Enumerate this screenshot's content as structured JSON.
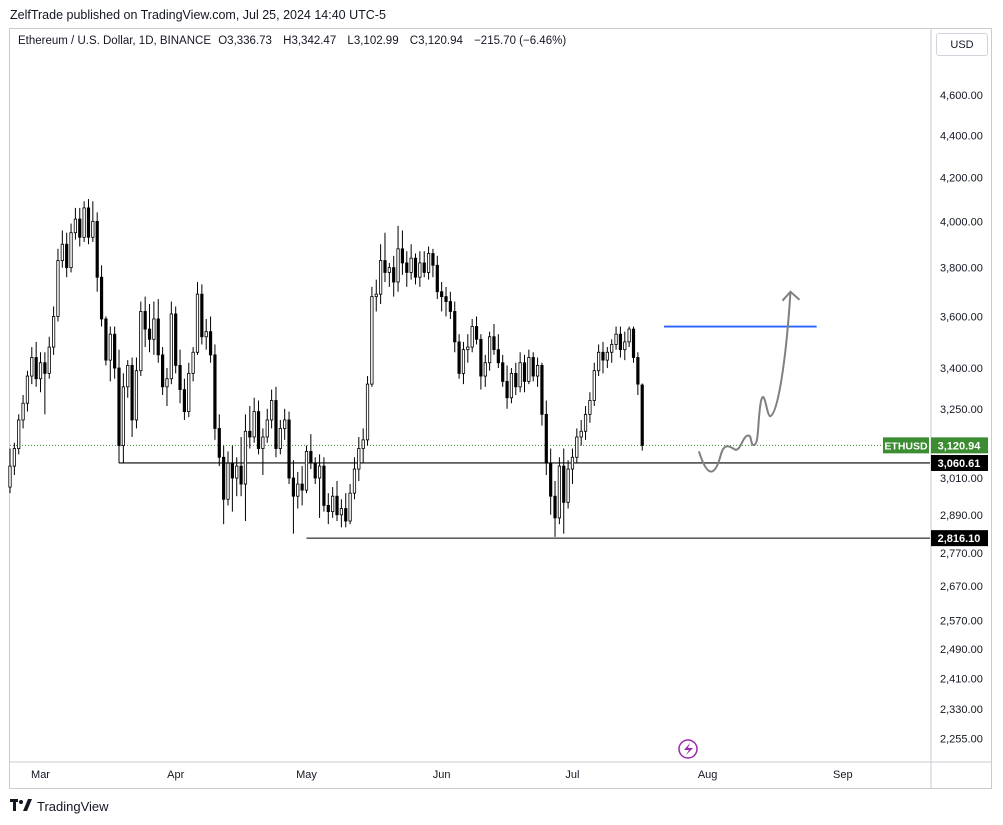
{
  "header": {
    "publisher_text": "ZelfTrade published on TradingView.com, Jul 25, 2024 14:40 UTC-5"
  },
  "legend": {
    "symbol": "Ethereum / U.S. Dollar, 1D, BINANCE",
    "open_label": "O",
    "open": "3,336.73",
    "high_label": "H",
    "high": "3,342.47",
    "low_label": "L",
    "low": "3,102.99",
    "close_label": "C",
    "close": "3,120.94",
    "change": "−215.70 (−6.46%)"
  },
  "currency_button": "USD",
  "footer": {
    "brand": "TradingView",
    "logo_icon": "tradingview-logo-icon"
  },
  "colors": {
    "up": "#ffffff",
    "down": "#000000",
    "wick": "#000000",
    "resistance": "#2962ff",
    "projection": "#808080",
    "price_tag": "#3c8c32"
  },
  "chart_data": {
    "type": "candlestick",
    "title": "Ethereum / U.S. Dollar, 1D, BINANCE",
    "x_tick_labels": [
      "Mar",
      "Apr",
      "May",
      "Jun",
      "Jul",
      "Aug",
      "Sep"
    ],
    "y_tick_labels": [
      "4,600.00",
      "4,400.00",
      "4,200.00",
      "4,000.00",
      "3,800.00",
      "3,600.00",
      "3,400.00",
      "3,250.00",
      "3,010.00",
      "2,890.00",
      "2,770.00",
      "2,670.00",
      "2,570.00",
      "2,490.00",
      "2,410.00",
      "2,330.00",
      "2,255.00"
    ],
    "y_ticks": [
      4600,
      4400,
      4200,
      4000,
      3800,
      3600,
      3400,
      3250,
      3010,
      2890,
      2770,
      2670,
      2570,
      2490,
      2410,
      2330,
      2255
    ],
    "x_ticks": [
      "2024-03-01",
      "2024-04-01",
      "2024-05-01",
      "2024-06-01",
      "2024-07-01",
      "2024-08-01",
      "2024-09-01"
    ],
    "x_range": [
      "2024-02-23",
      "2024-09-21"
    ],
    "y_scale": "log",
    "y_range": [
      2200,
      4950
    ],
    "grid": false,
    "candles_start_date": "2024-02-23",
    "candles_end_date": "2024-07-25",
    "ohlc": [
      [
        2980,
        3110,
        2960,
        3050
      ],
      [
        3050,
        3130,
        3020,
        3110
      ],
      [
        3110,
        3230,
        3090,
        3210
      ],
      [
        3210,
        3300,
        3180,
        3270
      ],
      [
        3270,
        3390,
        3240,
        3370
      ],
      [
        3370,
        3480,
        3340,
        3440
      ],
      [
        3440,
        3500,
        3330,
        3360
      ],
      [
        3360,
        3460,
        3310,
        3420
      ],
      [
        3420,
        3460,
        3230,
        3380
      ],
      [
        3380,
        3520,
        3360,
        3480
      ],
      [
        3480,
        3640,
        3450,
        3600
      ],
      [
        3600,
        3880,
        3580,
        3830
      ],
      [
        3830,
        3960,
        3800,
        3900
      ],
      [
        3900,
        3950,
        3760,
        3800
      ],
      [
        3800,
        3990,
        3780,
        3950
      ],
      [
        3950,
        4060,
        3920,
        4010
      ],
      [
        4010,
        4060,
        3890,
        3930
      ],
      [
        3930,
        4090,
        3910,
        4060
      ],
      [
        4060,
        4100,
        3900,
        3930
      ],
      [
        3930,
        4090,
        3910,
        4000
      ],
      [
        4000,
        4040,
        3700,
        3760
      ],
      [
        3760,
        3810,
        3560,
        3590
      ],
      [
        3590,
        3600,
        3410,
        3430
      ],
      [
        3430,
        3560,
        3350,
        3530
      ],
      [
        3530,
        3560,
        3360,
        3400
      ],
      [
        3400,
        3470,
        3060,
        3120
      ],
      [
        3120,
        3380,
        3060,
        3330
      ],
      [
        3330,
        3430,
        3290,
        3410
      ],
      [
        3410,
        3440,
        3150,
        3210
      ],
      [
        3210,
        3440,
        3180,
        3390
      ],
      [
        3390,
        3660,
        3370,
        3620
      ],
      [
        3620,
        3680,
        3480,
        3550
      ],
      [
        3550,
        3650,
        3460,
        3510
      ],
      [
        3510,
        3660,
        3450,
        3590
      ],
      [
        3590,
        3670,
        3420,
        3450
      ],
      [
        3450,
        3480,
        3300,
        3330
      ],
      [
        3330,
        3400,
        3260,
        3360
      ],
      [
        3360,
        3660,
        3340,
        3610
      ],
      [
        3610,
        3640,
        3380,
        3410
      ],
      [
        3410,
        3470,
        3270,
        3320
      ],
      [
        3320,
        3360,
        3210,
        3240
      ],
      [
        3240,
        3420,
        3220,
        3380
      ],
      [
        3380,
        3480,
        3350,
        3460
      ],
      [
        3460,
        3740,
        3450,
        3690
      ],
      [
        3690,
        3730,
        3490,
        3520
      ],
      [
        3520,
        3590,
        3470,
        3540
      ],
      [
        3540,
        3600,
        3420,
        3450
      ],
      [
        3450,
        3490,
        3140,
        3180
      ],
      [
        3180,
        3230,
        3050,
        3080
      ],
      [
        3080,
        3120,
        2860,
        2940
      ],
      [
        2940,
        3100,
        2920,
        3060
      ],
      [
        3060,
        3120,
        2900,
        3010
      ],
      [
        3010,
        3080,
        2950,
        3050
      ],
      [
        3050,
        3150,
        2950,
        2990
      ],
      [
        2990,
        3230,
        2870,
        3170
      ],
      [
        3170,
        3260,
        3110,
        3150
      ],
      [
        3150,
        3290,
        3130,
        3240
      ],
      [
        3240,
        3280,
        3090,
        3110
      ],
      [
        3110,
        3180,
        3020,
        3150
      ],
      [
        3150,
        3250,
        3130,
        3210
      ],
      [
        3210,
        3320,
        3180,
        3280
      ],
      [
        3280,
        3330,
        3080,
        3110
      ],
      [
        3110,
        3210,
        3090,
        3180
      ],
      [
        3180,
        3250,
        3140,
        3210
      ],
      [
        3210,
        3240,
        2990,
        3010
      ],
      [
        3010,
        3070,
        2830,
        2950
      ],
      [
        2950,
        3030,
        2910,
        2990
      ],
      [
        2990,
        3050,
        2920,
        2970
      ],
      [
        2970,
        3120,
        2960,
        3100
      ],
      [
        3100,
        3160,
        3040,
        3060
      ],
      [
        3060,
        3080,
        2990,
        3010
      ],
      [
        3010,
        3090,
        2880,
        3050
      ],
      [
        3050,
        3080,
        2900,
        2920
      ],
      [
        2920,
        2960,
        2860,
        2900
      ],
      [
        2900,
        2980,
        2880,
        2950
      ],
      [
        2950,
        3000,
        2870,
        2890
      ],
      [
        2890,
        2940,
        2850,
        2910
      ],
      [
        2910,
        2960,
        2850,
        2870
      ],
      [
        2870,
        2990,
        2860,
        2960
      ],
      [
        2960,
        3080,
        2940,
        3040
      ],
      [
        3040,
        3150,
        3000,
        3110
      ],
      [
        3110,
        3180,
        3060,
        3140
      ],
      [
        3140,
        3370,
        3120,
        3340
      ],
      [
        3340,
        3720,
        3330,
        3680
      ],
      [
        3680,
        3750,
        3620,
        3690
      ],
      [
        3690,
        3900,
        3650,
        3830
      ],
      [
        3830,
        3950,
        3740,
        3780
      ],
      [
        3780,
        3820,
        3720,
        3800
      ],
      [
        3800,
        3850,
        3680,
        3740
      ],
      [
        3740,
        3980,
        3700,
        3880
      ],
      [
        3880,
        3960,
        3770,
        3820
      ],
      [
        3820,
        3870,
        3720,
        3780
      ],
      [
        3780,
        3900,
        3750,
        3840
      ],
      [
        3840,
        3860,
        3730,
        3760
      ],
      [
        3760,
        3870,
        3720,
        3820
      ],
      [
        3820,
        3870,
        3760,
        3780
      ],
      [
        3780,
        3890,
        3750,
        3860
      ],
      [
        3860,
        3880,
        3760,
        3810
      ],
      [
        3810,
        3850,
        3670,
        3700
      ],
      [
        3700,
        3740,
        3620,
        3680
      ],
      [
        3680,
        3720,
        3600,
        3660
      ],
      [
        3660,
        3700,
        3590,
        3620
      ],
      [
        3620,
        3660,
        3460,
        3500
      ],
      [
        3500,
        3530,
        3360,
        3380
      ],
      [
        3380,
        3500,
        3340,
        3470
      ],
      [
        3470,
        3530,
        3420,
        3480
      ],
      [
        3480,
        3590,
        3460,
        3560
      ],
      [
        3560,
        3600,
        3490,
        3510
      ],
      [
        3510,
        3530,
        3320,
        3370
      ],
      [
        3370,
        3450,
        3330,
        3420
      ],
      [
        3420,
        3540,
        3390,
        3520
      ],
      [
        3520,
        3570,
        3450,
        3470
      ],
      [
        3470,
        3530,
        3400,
        3420
      ],
      [
        3420,
        3450,
        3330,
        3350
      ],
      [
        3350,
        3410,
        3250,
        3290
      ],
      [
        3290,
        3400,
        3270,
        3380
      ],
      [
        3380,
        3420,
        3300,
        3330
      ],
      [
        3330,
        3460,
        3310,
        3420
      ],
      [
        3420,
        3450,
        3310,
        3350
      ],
      [
        3350,
        3470,
        3340,
        3440
      ],
      [
        3440,
        3460,
        3350,
        3370
      ],
      [
        3370,
        3440,
        3330,
        3410
      ],
      [
        3410,
        3420,
        3190,
        3230
      ],
      [
        3230,
        3280,
        3020,
        3060
      ],
      [
        3060,
        3110,
        2890,
        2950
      ],
      [
        2950,
        3000,
        2820,
        2880
      ],
      [
        2880,
        3080,
        2860,
        3050
      ],
      [
        3050,
        3110,
        2830,
        2930
      ],
      [
        2930,
        3070,
        2910,
        3040
      ],
      [
        3040,
        3110,
        2990,
        3080
      ],
      [
        3080,
        3180,
        3060,
        3150
      ],
      [
        3150,
        3210,
        3120,
        3170
      ],
      [
        3170,
        3260,
        3140,
        3230
      ],
      [
        3230,
        3310,
        3200,
        3280
      ],
      [
        3280,
        3420,
        3260,
        3390
      ],
      [
        3390,
        3490,
        3370,
        3460
      ],
      [
        3460,
        3500,
        3380,
        3430
      ],
      [
        3430,
        3480,
        3400,
        3460
      ],
      [
        3460,
        3510,
        3420,
        3490
      ],
      [
        3490,
        3560,
        3470,
        3530
      ],
      [
        3530,
        3560,
        3440,
        3470
      ],
      [
        3470,
        3540,
        3430,
        3500
      ],
      [
        3500,
        3560,
        3480,
        3550
      ],
      [
        3550,
        3560,
        3420,
        3440
      ],
      [
        3440,
        3460,
        3300,
        3340
      ],
      [
        3336.73,
        3342.47,
        3102.99,
        3120.94
      ]
    ],
    "horizontal_levels": [
      {
        "label": "ETHUSD",
        "value": "3,120.94",
        "price": 3120.94,
        "style": "dotted",
        "color": "#3c8c32"
      },
      {
        "label": "",
        "value": "3,060.61",
        "price": 3060.61,
        "style": "solid",
        "color": "#000000",
        "from": "2024-03-19"
      },
      {
        "label": "",
        "value": "2,816.10",
        "price": 2816.1,
        "style": "solid",
        "color": "#000000",
        "from": "2024-05-01"
      },
      {
        "label": "",
        "value": "",
        "price": 3560,
        "style": "solid",
        "color": "#2962ff",
        "from": "2024-07-22",
        "to": "2024-08-26"
      }
    ],
    "annotations": [
      {
        "type": "curved-arrow",
        "color": "#808080",
        "from": [
          "2024-07-30",
          3100
        ],
        "to": [
          "2024-08-20",
          3700
        ]
      }
    ]
  }
}
